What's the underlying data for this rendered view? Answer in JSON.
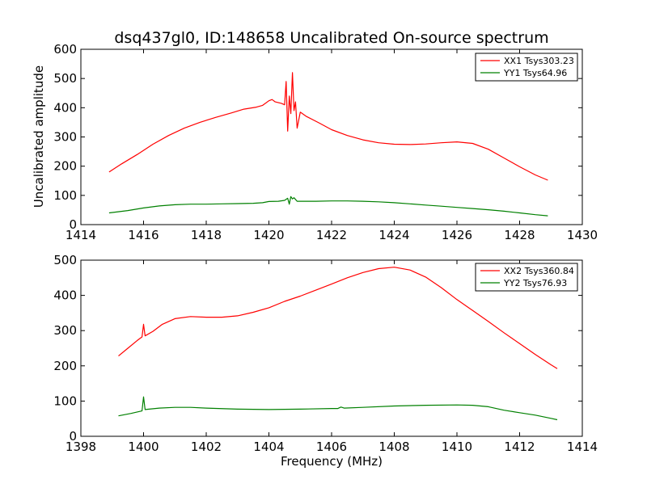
{
  "figure": {
    "title": "dsq437gl0, ID:148658 Uncalibrated On-source spectrum",
    "ylabel": "Uncalibrated amplitude",
    "xlabel": "Frequency (MHz)"
  },
  "chart_data": [
    {
      "type": "line",
      "title": "dsq437gl0, ID:148658 Uncalibrated On-source spectrum",
      "xlabel": "",
      "ylabel": "Uncalibrated amplitude",
      "xlim": [
        1414,
        1430
      ],
      "ylim": [
        0,
        600
      ],
      "xticks": [
        1414,
        1416,
        1418,
        1420,
        1422,
        1424,
        1426,
        1428,
        1430
      ],
      "yticks": [
        0,
        100,
        200,
        300,
        400,
        500,
        600
      ],
      "grid": false,
      "legend_position": "top-right",
      "series": [
        {
          "name": "XX1 Tsys303.23",
          "color": "#ff0000",
          "x": [
            1414.9,
            1415.3,
            1415.8,
            1416.3,
            1416.8,
            1417.3,
            1417.8,
            1418.3,
            1418.8,
            1419.2,
            1419.6,
            1419.8,
            1420.0,
            1420.1,
            1420.2,
            1420.4,
            1420.5,
            1420.55,
            1420.6,
            1420.65,
            1420.7,
            1420.75,
            1420.8,
            1420.85,
            1420.9,
            1421.0,
            1421.2,
            1421.6,
            1422.0,
            1422.5,
            1423.0,
            1423.5,
            1424.0,
            1424.5,
            1425.0,
            1425.5,
            1426.0,
            1426.5,
            1427.0,
            1427.5,
            1428.0,
            1428.5,
            1428.9
          ],
          "y": [
            180,
            208,
            240,
            275,
            305,
            330,
            350,
            367,
            382,
            395,
            402,
            408,
            424,
            428,
            420,
            415,
            410,
            490,
            320,
            440,
            380,
            520,
            390,
            420,
            330,
            385,
            370,
            348,
            325,
            305,
            290,
            280,
            275,
            274,
            276,
            280,
            283,
            278,
            258,
            228,
            198,
            170,
            152
          ]
        },
        {
          "name": "YY1 Tsys64.96",
          "color": "#008000",
          "x": [
            1414.9,
            1415.5,
            1416.0,
            1416.5,
            1417.0,
            1417.5,
            1418.0,
            1418.5,
            1419.0,
            1419.5,
            1419.8,
            1420.0,
            1420.3,
            1420.5,
            1420.6,
            1420.65,
            1420.7,
            1420.75,
            1420.8,
            1420.9,
            1421.0,
            1421.5,
            1422.0,
            1422.5,
            1423.0,
            1423.5,
            1424.0,
            1424.5,
            1425.0,
            1425.5,
            1426.0,
            1426.5,
            1427.0,
            1427.5,
            1428.0,
            1428.5,
            1428.9
          ],
          "y": [
            40,
            48,
            57,
            64,
            68,
            70,
            70,
            71,
            72,
            73,
            75,
            79,
            80,
            83,
            90,
            70,
            96,
            88,
            92,
            80,
            80,
            80,
            81,
            81,
            80,
            78,
            75,
            71,
            67,
            63,
            59,
            55,
            51,
            46,
            40,
            34,
            30
          ]
        }
      ]
    },
    {
      "type": "line",
      "title": "",
      "xlabel": "Frequency (MHz)",
      "ylabel": "",
      "xlim": [
        1398,
        1414
      ],
      "ylim": [
        0,
        500
      ],
      "xticks": [
        1398,
        1400,
        1402,
        1404,
        1406,
        1408,
        1410,
        1412,
        1414
      ],
      "yticks": [
        0,
        100,
        200,
        300,
        400,
        500
      ],
      "grid": false,
      "legend_position": "top-right",
      "series": [
        {
          "name": "XX2 Tsys360.84",
          "color": "#ff0000",
          "x": [
            1399.2,
            1399.5,
            1399.8,
            1399.95,
            1400.0,
            1400.05,
            1400.3,
            1400.6,
            1401.0,
            1401.5,
            1402.0,
            1402.5,
            1403.0,
            1403.5,
            1404.0,
            1404.5,
            1405.0,
            1405.5,
            1406.0,
            1406.5,
            1407.0,
            1407.5,
            1408.0,
            1408.5,
            1409.0,
            1409.5,
            1410.0,
            1410.5,
            1411.0,
            1411.5,
            1412.0,
            1412.5,
            1413.0,
            1413.2
          ],
          "y": [
            228,
            250,
            272,
            282,
            318,
            285,
            298,
            318,
            334,
            340,
            338,
            338,
            342,
            352,
            365,
            383,
            398,
            415,
            432,
            450,
            465,
            476,
            480,
            472,
            452,
            422,
            388,
            357,
            326,
            294,
            263,
            232,
            203,
            192
          ]
        },
        {
          "name": "YY2 Tsys76.93",
          "color": "#008000",
          "x": [
            1399.2,
            1399.6,
            1399.95,
            1400.0,
            1400.05,
            1400.5,
            1401.0,
            1401.5,
            1402.0,
            1403.0,
            1404.0,
            1405.0,
            1406.0,
            1406.2,
            1406.3,
            1406.4,
            1407.0,
            1408.0,
            1409.0,
            1410.0,
            1410.5,
            1411.0,
            1411.5,
            1412.0,
            1412.5,
            1413.0,
            1413.2
          ],
          "y": [
            58,
            65,
            72,
            112,
            76,
            80,
            82,
            82,
            80,
            77,
            76,
            77,
            79,
            79,
            83,
            80,
            82,
            86,
            88,
            89,
            88,
            84,
            74,
            67,
            60,
            51,
            47
          ]
        }
      ]
    }
  ]
}
